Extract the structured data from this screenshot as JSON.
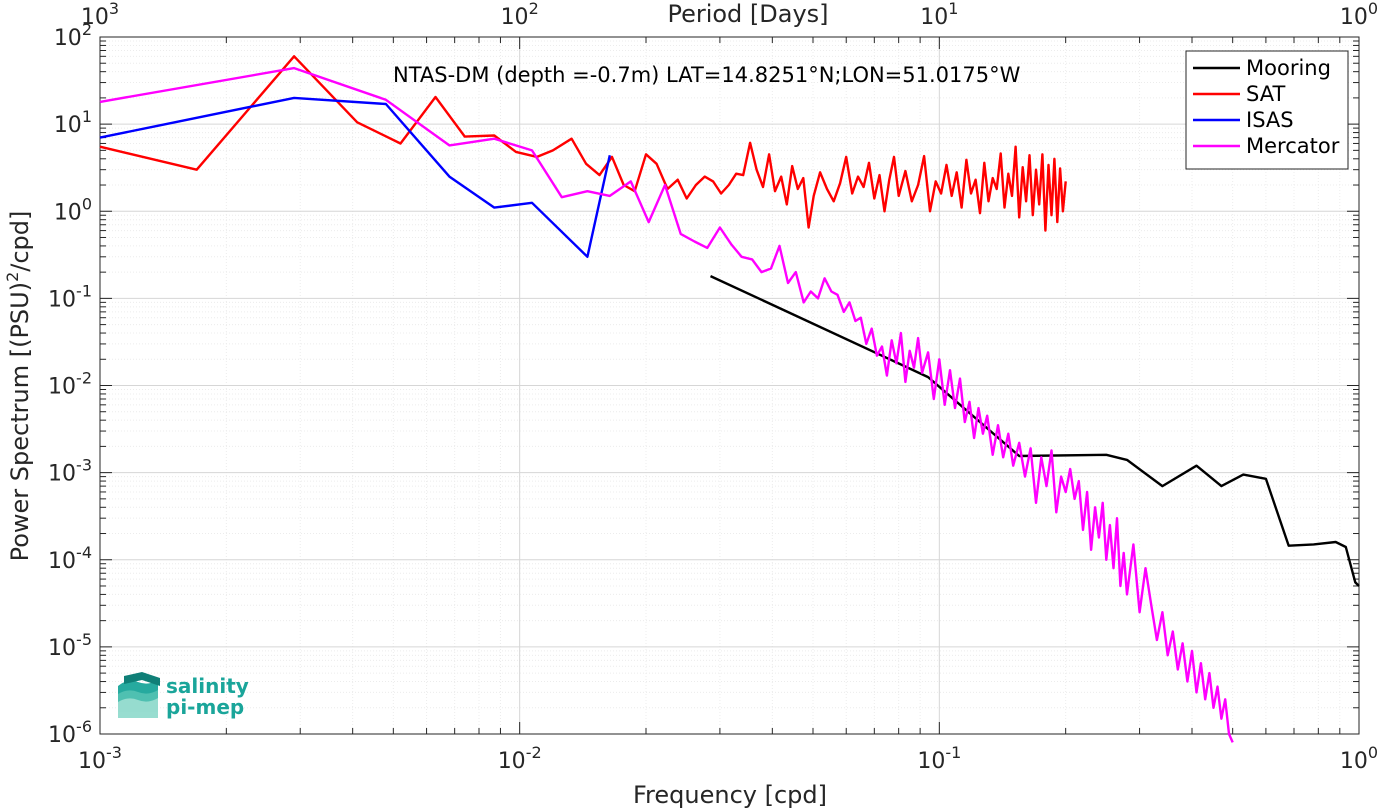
{
  "chart_data": {
    "type": "line",
    "title": "NTAS-DM (depth =-0.7m) LAT=14.8251°N;LON=51.0175°W",
    "xlabel": "Frequency [cpd]",
    "ylabel_main": "Power Spectrum [(PSU)",
    "ylabel_sup": "2",
    "ylabel_tail": "/cpd]",
    "top_xlabel": "Period [Days]",
    "x_scale": "log",
    "y_scale": "log",
    "xlim": [
      0.001,
      1
    ],
    "ylim": [
      1e-06,
      100
    ],
    "grid": true,
    "legend_position": "top-right",
    "x_ticks": [
      {
        "base": "10",
        "exp": "-3"
      },
      {
        "base": "10",
        "exp": "-2"
      },
      {
        "base": "10",
        "exp": "-1"
      },
      {
        "base": "10",
        "exp": "0"
      }
    ],
    "top_ticks": [
      {
        "base": "10",
        "exp": "3"
      },
      {
        "base": "10",
        "exp": "2"
      },
      {
        "base": "10",
        "exp": "1"
      },
      {
        "base": "10",
        "exp": "0"
      }
    ],
    "y_ticks": [
      {
        "base": "10",
        "exp": "2"
      },
      {
        "base": "10",
        "exp": "1"
      },
      {
        "base": "10",
        "exp": "0"
      },
      {
        "base": "10",
        "exp": "-1"
      },
      {
        "base": "10",
        "exp": "-2"
      },
      {
        "base": "10",
        "exp": "-3"
      },
      {
        "base": "10",
        "exp": "-4"
      },
      {
        "base": "10",
        "exp": "-5"
      },
      {
        "base": "10",
        "exp": "-6"
      }
    ],
    "series": [
      {
        "name": "Mooring",
        "color": "#000000",
        "x": [
          0.0285,
          0.094,
          0.155,
          0.25,
          0.28,
          0.34,
          0.41,
          0.47,
          0.53,
          0.6,
          0.68,
          0.78,
          0.88,
          0.93,
          0.98,
          1.0
        ],
        "y": [
          0.18,
          0.0125,
          0.00155,
          0.0016,
          0.0014,
          0.0007,
          0.0012,
          0.0007,
          0.00095,
          0.00085,
          0.000145,
          0.00015,
          0.00016,
          0.00014,
          5.5e-05,
          5e-05
        ]
      },
      {
        "name": "SAT",
        "color": "#ff0000",
        "x": [
          0.001,
          0.0017,
          0.0029,
          0.0041,
          0.0052,
          0.0063,
          0.0074,
          0.0087,
          0.0098,
          0.011,
          0.012,
          0.0133,
          0.0144,
          0.0155,
          0.0166,
          0.0177,
          0.0188,
          0.02,
          0.0212,
          0.0225,
          0.0238,
          0.025,
          0.0263,
          0.0276,
          0.0289,
          0.0302,
          0.0315,
          0.0328,
          0.0341,
          0.0354,
          0.0367,
          0.038,
          0.0393,
          0.0406,
          0.042,
          0.0433,
          0.0446,
          0.046,
          0.0474,
          0.0488,
          0.0502,
          0.052,
          0.054,
          0.056,
          0.058,
          0.06,
          0.062,
          0.064,
          0.066,
          0.068,
          0.07,
          0.072,
          0.074,
          0.076,
          0.078,
          0.08,
          0.083,
          0.086,
          0.089,
          0.092,
          0.095,
          0.098,
          0.101,
          0.104,
          0.107,
          0.11,
          0.113,
          0.116,
          0.119,
          0.122,
          0.125,
          0.128,
          0.131,
          0.134,
          0.137,
          0.14,
          0.143,
          0.146,
          0.149,
          0.152,
          0.155,
          0.158,
          0.161,
          0.164,
          0.167,
          0.17,
          0.173,
          0.176,
          0.179,
          0.182,
          0.185,
          0.188,
          0.191,
          0.194,
          0.197,
          0.2
        ],
        "y": [
          5.5,
          3.0,
          60,
          10.5,
          6.0,
          20.5,
          7.2,
          7.4,
          4.8,
          4.2,
          5.0,
          6.8,
          3.5,
          2.6,
          4.2,
          2.0,
          1.7,
          4.5,
          3.5,
          1.8,
          2.3,
          1.4,
          2.0,
          2.5,
          2.2,
          1.6,
          2.0,
          2.7,
          2.6,
          6.1,
          3.0,
          1.9,
          4.5,
          1.7,
          2.5,
          1.2,
          3.3,
          1.8,
          2.4,
          0.65,
          1.5,
          2.8,
          1.8,
          1.3,
          2.1,
          4.2,
          1.6,
          2.5,
          1.9,
          3.6,
          1.4,
          2.6,
          1.0,
          2.3,
          4.2,
          1.5,
          2.9,
          1.3,
          2.0,
          4.3,
          1.0,
          2.2,
          1.6,
          3.4,
          1.5,
          2.8,
          1.1,
          3.9,
          1.6,
          2.3,
          0.95,
          3.6,
          1.3,
          2.4,
          1.8,
          4.6,
          1.1,
          2.7,
          1.5,
          5.5,
          0.85,
          3.2,
          1.3,
          4.4,
          0.9,
          3.0,
          1.2,
          4.5,
          0.6,
          3.4,
          0.9,
          4.0,
          0.75,
          3.1,
          1.0,
          2.2
        ]
      },
      {
        "name": "ISAS",
        "color": "#0000ff",
        "x": [
          0.001,
          0.0029,
          0.0048,
          0.0068,
          0.0087,
          0.0107,
          0.0145,
          0.0164
        ],
        "y": [
          7.0,
          20,
          17,
          2.5,
          1.1,
          1.25,
          0.3,
          4.4
        ]
      },
      {
        "name": "Mercator",
        "color": "#ff00ff",
        "x": [
          0.001,
          0.0029,
          0.0048,
          0.0068,
          0.0087,
          0.0107,
          0.0126,
          0.0145,
          0.0164,
          0.0184,
          0.0203,
          0.0222,
          0.0242,
          0.0261,
          0.028,
          0.03,
          0.0319,
          0.0338,
          0.0358,
          0.0377,
          0.0397,
          0.0416,
          0.0436,
          0.0455,
          0.0475,
          0.0494,
          0.0514,
          0.0533,
          0.0553,
          0.0572,
          0.0592,
          0.0611,
          0.0631,
          0.065,
          0.067,
          0.069,
          0.071,
          0.073,
          0.075,
          0.077,
          0.079,
          0.081,
          0.083,
          0.085,
          0.087,
          0.089,
          0.091,
          0.094,
          0.097,
          0.1,
          0.103,
          0.106,
          0.109,
          0.112,
          0.115,
          0.118,
          0.121,
          0.124,
          0.127,
          0.13,
          0.134,
          0.138,
          0.142,
          0.146,
          0.15,
          0.155,
          0.16,
          0.165,
          0.17,
          0.175,
          0.18,
          0.185,
          0.19,
          0.195,
          0.2,
          0.205,
          0.21,
          0.215,
          0.22,
          0.225,
          0.23,
          0.235,
          0.24,
          0.245,
          0.25,
          0.255,
          0.26,
          0.265,
          0.27,
          0.275,
          0.28,
          0.29,
          0.3,
          0.31,
          0.32,
          0.33,
          0.34,
          0.35,
          0.36,
          0.37,
          0.38,
          0.39,
          0.4,
          0.41,
          0.42,
          0.43,
          0.44,
          0.45,
          0.46,
          0.47,
          0.48,
          0.49,
          0.5
        ],
        "y": [
          18,
          44,
          19,
          5.7,
          6.8,
          5.0,
          1.45,
          1.7,
          1.5,
          2.2,
          0.75,
          2.0,
          0.55,
          0.45,
          0.38,
          0.65,
          0.42,
          0.3,
          0.28,
          0.2,
          0.22,
          0.4,
          0.15,
          0.2,
          0.09,
          0.12,
          0.1,
          0.17,
          0.12,
          0.11,
          0.07,
          0.09,
          0.055,
          0.06,
          0.03,
          0.045,
          0.022,
          0.028,
          0.013,
          0.033,
          0.018,
          0.04,
          0.011,
          0.025,
          0.016,
          0.035,
          0.014,
          0.024,
          0.007,
          0.02,
          0.006,
          0.015,
          0.0055,
          0.012,
          0.0038,
          0.0065,
          0.0025,
          0.0055,
          0.0028,
          0.0045,
          0.0016,
          0.0035,
          0.0015,
          0.0028,
          0.0012,
          0.0022,
          0.0009,
          0.0019,
          0.00045,
          0.0015,
          0.0007,
          0.0018,
          0.00035,
          0.0009,
          0.0006,
          0.0011,
          0.0005,
          0.0008,
          0.00022,
          0.0006,
          0.00013,
          0.0004,
          0.00018,
          0.00045,
          0.0001,
          0.00025,
          8e-05,
          0.0003,
          5e-05,
          0.00012,
          4e-05,
          0.00015,
          2.5e-05,
          8e-05,
          3e-05,
          1.2e-05,
          2.5e-05,
          8e-06,
          1.5e-05,
          5.5e-06,
          1.1e-05,
          4e-06,
          9e-06,
          3e-06,
          6.5e-06,
          2.5e-06,
          5e-06,
          2e-06,
          3.5e-06,
          1.5e-06,
          2.5e-06,
          1e-06,
          8e-07
        ]
      }
    ]
  },
  "logo": {
    "line1": "salinity",
    "line2": "pi-mep",
    "color": "#1aa59a"
  }
}
